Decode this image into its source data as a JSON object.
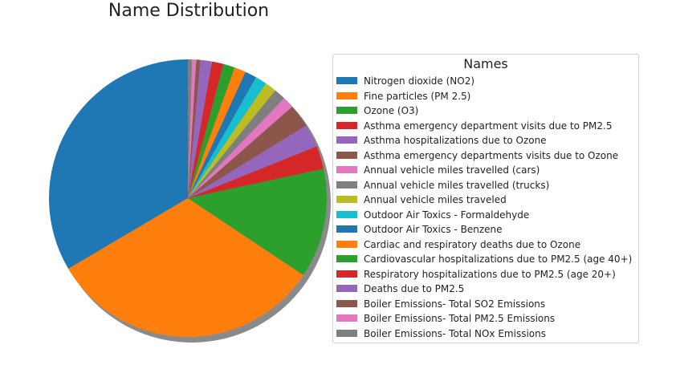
{
  "chart_data": {
    "type": "pie",
    "title": "Name Distribution",
    "legend_title": "Names",
    "legend_position": "right",
    "shadow": true,
    "start_angle_deg": 90,
    "direction": "counterclockwise",
    "slices": [
      {
        "label": "Nitrogen dioxide (NO2)",
        "value": 34.9,
        "color": "#1f77b4"
      },
      {
        "label": "Fine particles (PM 2.5)",
        "value": 33.5,
        "color": "#ff7f0e"
      },
      {
        "label": "Ozone (O3)",
        "value": 13.3,
        "color": "#2ca02c"
      },
      {
        "label": "Asthma emergency department visits due to PM2.5",
        "value": 2.8,
        "color": "#d62728"
      },
      {
        "label": "Asthma hospitalizations due to Ozone",
        "value": 2.8,
        "color": "#9467bd"
      },
      {
        "label": "Asthma emergency departments visits due to Ozone",
        "value": 2.8,
        "color": "#8c564b"
      },
      {
        "label": "Annual vehicle miles travelled (cars)",
        "value": 1.4,
        "color": "#e377c2"
      },
      {
        "label": "Annual vehicle miles travelled (trucks)",
        "value": 1.4,
        "color": "#7f7f7f"
      },
      {
        "label": "Annual vehicle miles traveled",
        "value": 1.4,
        "color": "#bcbd22"
      },
      {
        "label": "Outdoor Air Toxics - Formaldehyde",
        "value": 1.4,
        "color": "#17becf"
      },
      {
        "label": "Outdoor Air Toxics - Benzene",
        "value": 1.4,
        "color": "#1f77b4"
      },
      {
        "label": "Cardiac and respiratory deaths due to Ozone",
        "value": 1.4,
        "color": "#ff7f0e"
      },
      {
        "label": "Cardiovascular hospitalizations due to PM2.5 (age 40+)",
        "value": 1.4,
        "color": "#2ca02c"
      },
      {
        "label": "Respiratory hospitalizations due to PM2.5 (age 20+)",
        "value": 1.4,
        "color": "#d62728"
      },
      {
        "label": "Deaths due to PM2.5",
        "value": 1.4,
        "color": "#9467bd"
      },
      {
        "label": "Boiler Emissions- Total SO2 Emissions",
        "value": 0.5,
        "color": "#8c564b"
      },
      {
        "label": "Boiler Emissions- Total PM2.5 Emissions",
        "value": 0.5,
        "color": "#e377c2"
      },
      {
        "label": "Boiler Emissions- Total NOx Emissions",
        "value": 0.5,
        "color": "#7f7f7f"
      }
    ]
  }
}
